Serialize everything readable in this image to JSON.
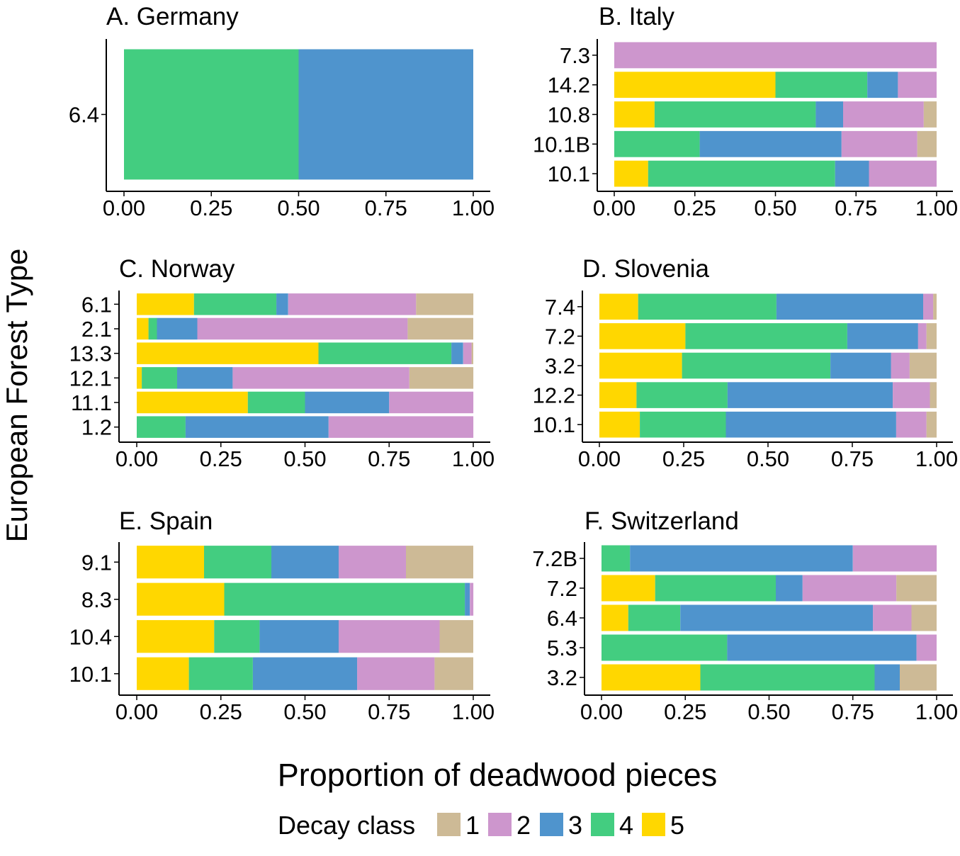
{
  "figure": {
    "ylabel": "European Forest Type",
    "xlabel": "Proportion of deadwood pieces"
  },
  "legend": {
    "title": "Decay class",
    "entries": [
      {
        "label": "1",
        "color": "#CDBA96"
      },
      {
        "label": "2",
        "color": "#CD96CD"
      },
      {
        "label": "3",
        "color": "#4F94CD"
      },
      {
        "label": "4",
        "color": "#43CD80"
      },
      {
        "label": "5",
        "color": "#FFD700"
      }
    ]
  },
  "chart_data": [
    {
      "type": "bar",
      "orientation": "horizontal",
      "stacked": true,
      "title": "A. Germany",
      "categories": [
        "6.4"
      ],
      "series": [
        {
          "name": "5",
          "values": [
            0
          ]
        },
        {
          "name": "4",
          "values": [
            0.5
          ]
        },
        {
          "name": "3",
          "values": [
            0.5
          ]
        },
        {
          "name": "2",
          "values": [
            0
          ]
        },
        {
          "name": "1",
          "values": [
            0
          ]
        }
      ],
      "x_ticks": [
        "0.00",
        "0.25",
        "0.50",
        "0.75",
        "1.00"
      ],
      "xlim": [
        0,
        1
      ]
    },
    {
      "type": "bar",
      "orientation": "horizontal",
      "stacked": true,
      "title": "B. Italy",
      "categories": [
        "7.3",
        "14.2",
        "10.8",
        "10.1B",
        "10.1"
      ],
      "series": [
        {
          "name": "5",
          "values": [
            0,
            0.5,
            0.125,
            0,
            0.105
          ]
        },
        {
          "name": "4",
          "values": [
            0,
            0.285,
            0.5,
            0.265,
            0.58
          ]
        },
        {
          "name": "3",
          "values": [
            0,
            0.095,
            0.085,
            0.44,
            0.105
          ]
        },
        {
          "name": "2",
          "values": [
            1.0,
            0.12,
            0.25,
            0.235,
            0.21
          ]
        },
        {
          "name": "1",
          "values": [
            0,
            0,
            0.04,
            0.06,
            0
          ]
        }
      ],
      "x_ticks": [
        "0.00",
        "0.25",
        "0.50",
        "0.75",
        "1.00"
      ],
      "xlim": [
        0,
        1
      ]
    },
    {
      "type": "bar",
      "orientation": "horizontal",
      "stacked": true,
      "title": "C. Norway",
      "categories": [
        "6.1",
        "2.1",
        "13.3",
        "12.1",
        "11.1",
        "1.2"
      ],
      "series": [
        {
          "name": "5",
          "values": [
            0.17,
            0.035,
            0.54,
            0.015,
            0.33,
            0
          ]
        },
        {
          "name": "4",
          "values": [
            0.245,
            0.025,
            0.395,
            0.105,
            0.17,
            0.145
          ]
        },
        {
          "name": "3",
          "values": [
            0.035,
            0.12,
            0.035,
            0.165,
            0.25,
            0.425
          ]
        },
        {
          "name": "2",
          "values": [
            0.38,
            0.625,
            0.025,
            0.525,
            0.25,
            0.43
          ]
        },
        {
          "name": "1",
          "values": [
            0.17,
            0.195,
            0.005,
            0.19,
            0,
            0
          ]
        }
      ],
      "x_ticks": [
        "0.00",
        "0.25",
        "0.50",
        "0.75",
        "1.00"
      ],
      "xlim": [
        0,
        1
      ]
    },
    {
      "type": "bar",
      "orientation": "horizontal",
      "stacked": true,
      "title": "D. Slovenia",
      "categories": [
        "7.4",
        "7.2",
        "3.2",
        "12.2",
        "10.1"
      ],
      "series": [
        {
          "name": "5",
          "values": [
            0.115,
            0.255,
            0.245,
            0.11,
            0.12
          ]
        },
        {
          "name": "4",
          "values": [
            0.41,
            0.48,
            0.44,
            0.27,
            0.255
          ]
        },
        {
          "name": "3",
          "values": [
            0.435,
            0.21,
            0.18,
            0.49,
            0.505
          ]
        },
        {
          "name": "2",
          "values": [
            0.03,
            0.025,
            0.055,
            0.11,
            0.09
          ]
        },
        {
          "name": "1",
          "values": [
            0.01,
            0.03,
            0.08,
            0.02,
            0.03
          ]
        }
      ],
      "x_ticks": [
        "0.00",
        "0.25",
        "0.50",
        "0.75",
        "1.00"
      ],
      "xlim": [
        0,
        1
      ]
    },
    {
      "type": "bar",
      "orientation": "horizontal",
      "stacked": true,
      "title": "E. Spain",
      "categories": [
        "9.1",
        "8.3",
        "10.4",
        "10.1"
      ],
      "series": [
        {
          "name": "5",
          "values": [
            0.2,
            0.26,
            0.23,
            0.155
          ]
        },
        {
          "name": "4",
          "values": [
            0.2,
            0.715,
            0.135,
            0.19
          ]
        },
        {
          "name": "3",
          "values": [
            0.2,
            0.015,
            0.235,
            0.31
          ]
        },
        {
          "name": "2",
          "values": [
            0.2,
            0.01,
            0.3,
            0.23
          ]
        },
        {
          "name": "1",
          "values": [
            0.2,
            0,
            0.1,
            0.115
          ]
        }
      ],
      "x_ticks": [
        "0.00",
        "0.25",
        "0.50",
        "0.75",
        "1.00"
      ],
      "xlim": [
        0,
        1
      ]
    },
    {
      "type": "bar",
      "orientation": "horizontal",
      "stacked": true,
      "title": "F. Switzerland",
      "categories": [
        "7.2B",
        "7.2",
        "6.4",
        "5.3",
        "3.2"
      ],
      "series": [
        {
          "name": "5",
          "values": [
            0,
            0.16,
            0.08,
            0,
            0.295
          ]
        },
        {
          "name": "4",
          "values": [
            0.085,
            0.36,
            0.155,
            0.375,
            0.52
          ]
        },
        {
          "name": "3",
          "values": [
            0.665,
            0.08,
            0.575,
            0.565,
            0.075
          ]
        },
        {
          "name": "2",
          "values": [
            0.25,
            0.28,
            0.115,
            0.06,
            0
          ]
        },
        {
          "name": "1",
          "values": [
            0,
            0.12,
            0.075,
            0,
            0.11
          ]
        }
      ],
      "x_ticks": [
        "0.00",
        "0.25",
        "0.50",
        "0.75",
        "1.00"
      ],
      "xlim": [
        0,
        1
      ]
    }
  ]
}
